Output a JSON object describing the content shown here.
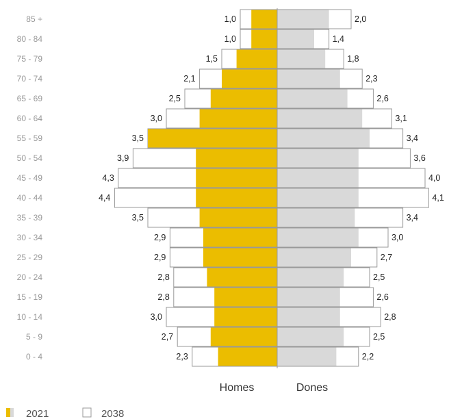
{
  "chart_data": {
    "type": "bar",
    "orientation": "horizontal",
    "categories": [
      "85 +",
      "80 - 84",
      "75 - 79",
      "70 - 74",
      "65 - 69",
      "60 - 64",
      "55 - 59",
      "50 - 54",
      "45 - 49",
      "40 - 44",
      "35 - 39",
      "30 - 34",
      "25 - 29",
      "20 - 24",
      "15 - 19",
      "10 - 14",
      "5 - 9",
      "0 - 4"
    ],
    "left_group": "Homes",
    "right_group": "Dones",
    "series": [
      {
        "name": "2021",
        "homes": [
          0.7,
          0.7,
          1.1,
          1.5,
          1.8,
          2.1,
          3.5,
          2.2,
          2.2,
          2.2,
          2.1,
          2.0,
          2.0,
          1.9,
          1.7,
          1.7,
          1.8,
          1.6
        ],
        "dones": [
          1.4,
          1.0,
          1.3,
          1.7,
          1.9,
          2.3,
          2.5,
          2.2,
          2.2,
          2.2,
          2.1,
          2.2,
          2.0,
          1.8,
          1.7,
          1.7,
          1.8,
          1.6
        ],
        "colors": {
          "homes": "#EBBD00",
          "dones": "#D9D9D9"
        }
      },
      {
        "name": "2038",
        "homes": [
          1.0,
          1.0,
          1.5,
          2.1,
          2.5,
          3.0,
          3.5,
          3.9,
          4.3,
          4.4,
          3.5,
          2.9,
          2.9,
          2.8,
          2.8,
          3.0,
          2.7,
          2.3
        ],
        "dones": [
          2.0,
          1.4,
          1.8,
          2.3,
          2.6,
          3.1,
          3.4,
          3.6,
          4.0,
          4.1,
          3.4,
          3.0,
          2.7,
          2.5,
          2.6,
          2.8,
          2.5,
          2.2
        ],
        "homes_labels": [
          "1,0",
          "1,0",
          "1,5",
          "2,1",
          "2,5",
          "3,0",
          "3,5",
          "3,9",
          "4,3",
          "4,4",
          "3,5",
          "2,9",
          "2,9",
          "2,8",
          "2,8",
          "3,0",
          "2,7",
          "2,3"
        ],
        "dones_labels": [
          "2,0",
          "1,4",
          "1,8",
          "2,3",
          "2,6",
          "3,1",
          "3,4",
          "3,6",
          "4,0",
          "4,1",
          "3,4",
          "3,0",
          "2,7",
          "2,5",
          "2,6",
          "2,8",
          "2,5",
          "2,2"
        ],
        "colors": {
          "fill": "#FFFFFF",
          "stroke": "#999999",
          "dones_fill": "#CFCFCF"
        }
      }
    ],
    "legend": {
      "placement": "bottom-left",
      "items": [
        "2021",
        "2038"
      ]
    },
    "colors": {
      "homes_2021": "#EBBD00",
      "dones_2021": "#D9D9D9",
      "axis": "#999999"
    }
  }
}
